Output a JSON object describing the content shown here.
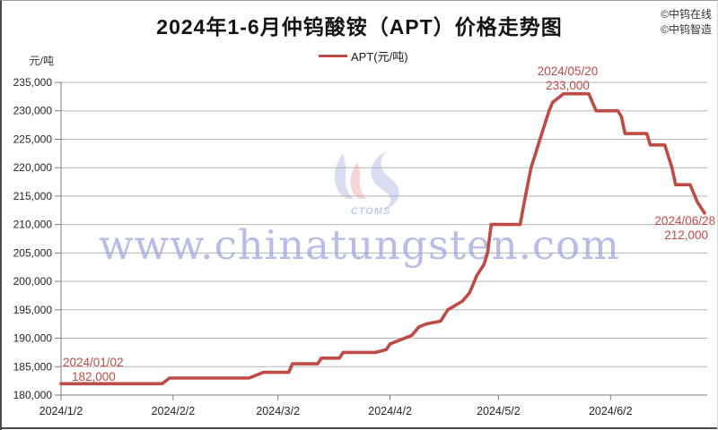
{
  "header": {
    "credits": [
      "©中钨在线",
      "©中钨智造"
    ]
  },
  "legend": {
    "label": "APT(元/吨)"
  },
  "watermarks": {
    "site": "www.chinatungsten.com",
    "logo_text": "CTOMS"
  },
  "colors": {
    "line": "#bf4b47",
    "annotation": "#bf4b47",
    "grid": "#b5b5b5",
    "axis": "#7f7f7f",
    "watermark_blue": "#9ea4db",
    "watermark_pink": "#e89aa4"
  },
  "chart_data": {
    "type": "line",
    "title": "2024年1-6月仲钨酸铵（APT）价格走势图",
    "ylabel": "元/吨",
    "ylim": [
      180000,
      235000
    ],
    "y_tick_step": 5000,
    "y_tick_labels": [
      "235,000",
      "230,000",
      "225,000",
      "220,000",
      "215,000",
      "210,000",
      "205,000",
      "200,000",
      "195,000",
      "190,000",
      "185,000",
      "180,000"
    ],
    "x_tick_labels": [
      "2024/1/2",
      "2024/2/2",
      "2024/3/2",
      "2024/4/2",
      "2024/5/2",
      "2024/6/2"
    ],
    "x_tick_dates": [
      "2024/01/02",
      "2024/02/02",
      "2024/03/02",
      "2024/04/02",
      "2024/05/02",
      "2024/06/02"
    ],
    "x_range": [
      "2024/01/02",
      "2024/06/28"
    ],
    "grid": "horizontal",
    "legend_position": "top-center",
    "series": [
      {
        "name": "APT(元/吨)",
        "points": [
          [
            "2024/01/02",
            182000
          ],
          [
            "2024/01/30",
            182000
          ],
          [
            "2024/02/01",
            183000
          ],
          [
            "2024/02/23",
            183000
          ],
          [
            "2024/02/27",
            184000
          ],
          [
            "2024/03/05",
            184000
          ],
          [
            "2024/03/06",
            185500
          ],
          [
            "2024/03/13",
            185500
          ],
          [
            "2024/03/14",
            186500
          ],
          [
            "2024/03/19",
            186500
          ],
          [
            "2024/03/20",
            187500
          ],
          [
            "2024/03/29",
            187500
          ],
          [
            "2024/04/01",
            188000
          ],
          [
            "2024/04/02",
            189000
          ],
          [
            "2024/04/08",
            190500
          ],
          [
            "2024/04/10",
            192000
          ],
          [
            "2024/04/12",
            192500
          ],
          [
            "2024/04/16",
            193000
          ],
          [
            "2024/04/18",
            195000
          ],
          [
            "2024/04/22",
            196500
          ],
          [
            "2024/04/24",
            198000
          ],
          [
            "2024/04/26",
            201000
          ],
          [
            "2024/04/28",
            203000
          ],
          [
            "2024/04/29",
            205000
          ],
          [
            "2024/04/30",
            210000
          ],
          [
            "2024/05/08",
            210000
          ],
          [
            "2024/05/09",
            213500
          ],
          [
            "2024/05/11",
            220000
          ],
          [
            "2024/05/14",
            226000
          ],
          [
            "2024/05/16",
            230000
          ],
          [
            "2024/05/17",
            231500
          ],
          [
            "2024/05/20",
            233000
          ],
          [
            "2024/05/27",
            233000
          ],
          [
            "2024/05/28",
            231500
          ],
          [
            "2024/05/29",
            230000
          ],
          [
            "2024/06/04",
            230000
          ],
          [
            "2024/06/05",
            229000
          ],
          [
            "2024/06/06",
            226000
          ],
          [
            "2024/06/12",
            226000
          ],
          [
            "2024/06/13",
            224000
          ],
          [
            "2024/06/17",
            224000
          ],
          [
            "2024/06/19",
            220000
          ],
          [
            "2024/06/20",
            217000
          ],
          [
            "2024/06/24",
            217000
          ],
          [
            "2024/06/25",
            215500
          ],
          [
            "2024/06/26",
            214000
          ],
          [
            "2024/06/28",
            212000
          ]
        ]
      }
    ],
    "annotations": [
      {
        "date_label": "2024/01/02",
        "value_label": "182,000"
      },
      {
        "date_label": "2024/05/20",
        "value_label": "233,000"
      },
      {
        "date_label": "2024/06/28",
        "value_label": "212,000"
      }
    ]
  }
}
